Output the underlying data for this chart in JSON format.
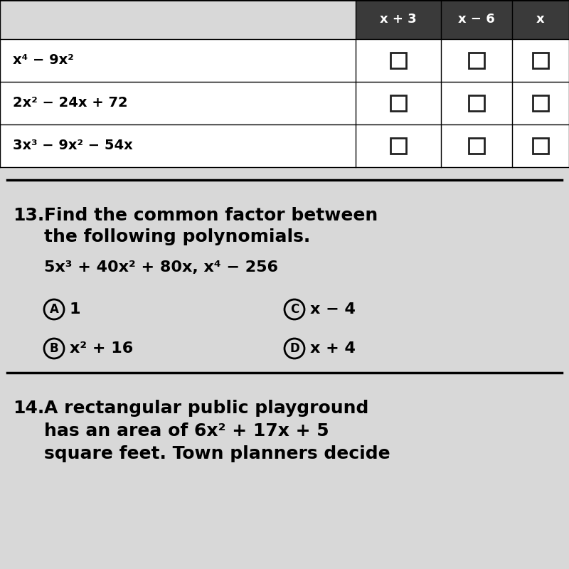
{
  "bg_color": "#c8c8c8",
  "content_bg": "#d8d8d8",
  "table": {
    "rows": [
      {
        "expr": "x⁴ − 9x²"
      },
      {
        "expr": "2x² − 24x + 72"
      },
      {
        "expr": "3x³ − 9x² − 54x"
      }
    ],
    "header_partial": [
      "x + 3",
      "x − 6",
      "x"
    ],
    "header_bg": "#3a3a3a"
  },
  "q13": {
    "number": "13.",
    "line1": "Find the common factor between",
    "line2": "the following polynomials.",
    "polynomials": "5x³ + 40x² + 80x, x⁴ − 256",
    "options": [
      {
        "label": "A",
        "text": "1"
      },
      {
        "label": "B",
        "text": "x² + 16"
      },
      {
        "label": "C",
        "text": "x − 4"
      },
      {
        "label": "D",
        "text": "x + 4"
      }
    ]
  },
  "q14": {
    "number": "14.",
    "line1": "A rectangular public playground",
    "line2": "has an area of 6x² + 17x + 5",
    "line3": "square feet. Town planners decide"
  }
}
